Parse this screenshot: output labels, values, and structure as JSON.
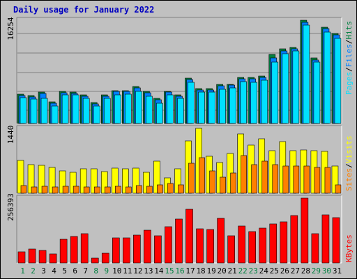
{
  "title": "Daily usage for January 2022",
  "colors": {
    "pages": "#00e0ff",
    "files": "#0080ff",
    "hits": "#008040",
    "visits": "#ffff00",
    "sites": "#ff8000",
    "kbytes": "#ff0000",
    "weekday": "#000000",
    "weekend": "#008040"
  },
  "chart_data": [
    {
      "type": "bar",
      "title": "Daily usage for January 2022",
      "ymax_label": "16254",
      "legend": [
        "Pages",
        "Files",
        "Hits"
      ],
      "categories": [
        "1",
        "2",
        "3",
        "4",
        "5",
        "6",
        "7",
        "8",
        "9",
        "10",
        "11",
        "12",
        "13",
        "14",
        "15",
        "16",
        "17",
        "18",
        "19",
        "20",
        "21",
        "22",
        "23",
        "24",
        "25",
        "26",
        "27",
        "28",
        "29",
        "30",
        "31"
      ],
      "series": [
        {
          "name": "Hits",
          "values": [
            4600,
            4400,
            4900,
            3400,
            5000,
            4900,
            4500,
            3300,
            4500,
            5200,
            5200,
            5800,
            5000,
            3900,
            5100,
            4500,
            7100,
            5500,
            5500,
            6100,
            6200,
            7200,
            7200,
            7500,
            10900,
            11700,
            12000,
            16254,
            10300,
            15200,
            14200
          ]
        },
        {
          "name": "Files",
          "values": [
            4400,
            4200,
            4700,
            3200,
            4800,
            4700,
            4300,
            3100,
            4300,
            5000,
            5000,
            5600,
            4800,
            3700,
            4900,
            4300,
            6900,
            5300,
            5300,
            5900,
            6000,
            7000,
            7000,
            7300,
            10300,
            11400,
            11800,
            15900,
            10000,
            14900,
            13900
          ]
        },
        {
          "name": "Pages",
          "values": [
            4100,
            3800,
            4000,
            2800,
            4500,
            4500,
            4000,
            2800,
            4000,
            4500,
            4600,
            5000,
            4300,
            3200,
            4500,
            3900,
            6500,
            4900,
            4900,
            5400,
            5600,
            6600,
            6500,
            6800,
            9700,
            11000,
            11400,
            15500,
            9700,
            14400,
            13400
          ]
        }
      ]
    },
    {
      "type": "bar",
      "ymax_label": "1440",
      "legend": [
        "Sites",
        "Visits"
      ],
      "categories": [
        "1",
        "2",
        "3",
        "4",
        "5",
        "6",
        "7",
        "8",
        "9",
        "10",
        "11",
        "12",
        "13",
        "14",
        "15",
        "16",
        "17",
        "18",
        "19",
        "20",
        "21",
        "22",
        "23",
        "24",
        "25",
        "26",
        "27",
        "28",
        "29",
        "30",
        "31"
      ],
      "series": [
        {
          "name": "Visits",
          "values": [
            730,
            640,
            620,
            570,
            500,
            470,
            540,
            540,
            480,
            550,
            540,
            560,
            470,
            710,
            340,
            540,
            1160,
            1440,
            820,
            680,
            880,
            1310,
            1070,
            1200,
            950,
            1140,
            950,
            955,
            940,
            930,
            600
          ]
        },
        {
          "name": "Sites",
          "values": [
            170,
            140,
            150,
            140,
            160,
            150,
            140,
            140,
            140,
            150,
            140,
            170,
            160,
            180,
            220,
            180,
            660,
            790,
            490,
            350,
            450,
            840,
            640,
            710,
            640,
            610,
            600,
            600,
            580,
            570,
            180
          ]
        }
      ]
    },
    {
      "type": "bar",
      "ymax_label": "256393",
      "legend": [
        "KBytes"
      ],
      "categories": [
        "1",
        "2",
        "3",
        "4",
        "5",
        "6",
        "7",
        "8",
        "9",
        "10",
        "11",
        "12",
        "13",
        "14",
        "15",
        "16",
        "17",
        "18",
        "19",
        "20",
        "21",
        "22",
        "23",
        "24",
        "25",
        "26",
        "27",
        "28",
        "29",
        "30",
        "31"
      ],
      "series": [
        {
          "name": "KBytes",
          "values": [
            43000,
            54000,
            50000,
            36000,
            95000,
            106000,
            116000,
            19000,
            38000,
            100000,
            98000,
            110000,
            130000,
            108000,
            144000,
            173000,
            211000,
            134000,
            133000,
            177000,
            108000,
            145000,
            125000,
            137000,
            154000,
            163000,
            187000,
            256393,
            116000,
            189000,
            178000
          ]
        }
      ]
    }
  ],
  "weekend_days": [
    "1",
    "2",
    "8",
    "9",
    "15",
    "16",
    "22",
    "23",
    "29",
    "30"
  ]
}
